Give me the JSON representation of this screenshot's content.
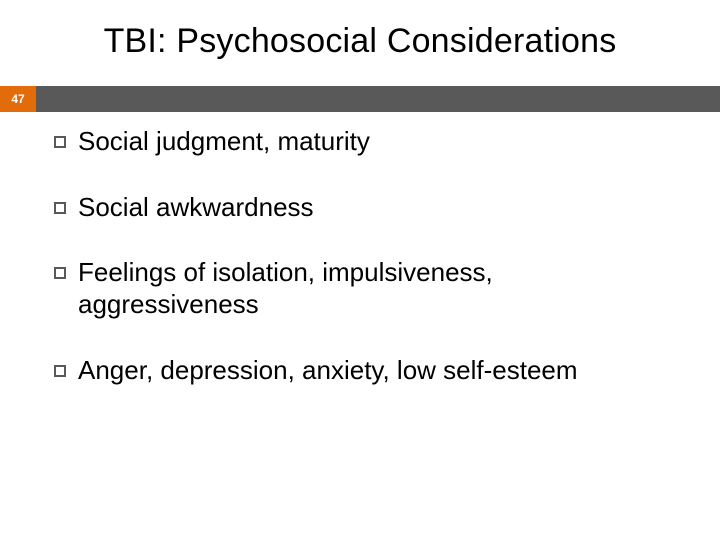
{
  "title": "TBI: Psychosocial Considerations",
  "page_number": "47",
  "colors": {
    "accent": "#e36c0a",
    "bar": "#595959",
    "bullet_border": "#595959",
    "text": "#000000",
    "background": "#ffffff"
  },
  "typography": {
    "title_fontsize": 34,
    "body_fontsize": 26,
    "page_number_fontsize": 12,
    "font_family": "Arial"
  },
  "bullets": [
    "Social judgment, maturity",
    "Social awkwardness",
    "Feelings of isolation, impulsiveness, aggressiveness",
    "Anger, depression, anxiety, low self-esteem"
  ]
}
